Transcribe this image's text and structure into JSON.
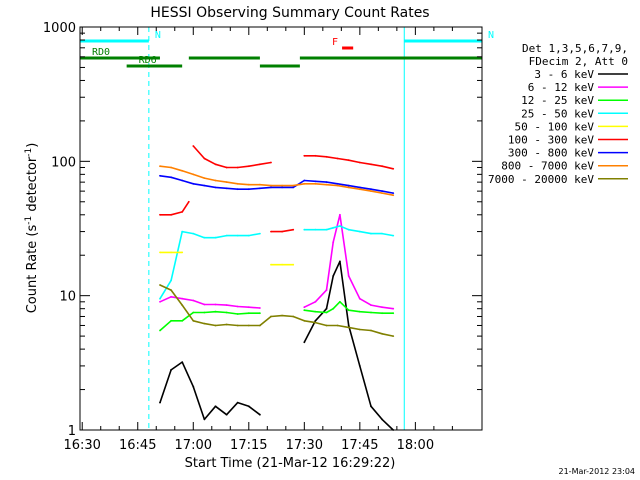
{
  "chart_data": {
    "type": "line",
    "title": "HESSI Observing Summary Count Rates",
    "xlabel": "Start Time (21-Mar-12 16:29:22)",
    "ylabel": "Count Rate (s",
    "ylabel_sup": "-1",
    "ylabel_tail": " detector",
    "ylabel_sup2": "-1",
    "ylabel_close": ")",
    "yscale": "log",
    "x_range_min": [
      16.49,
      18.3
    ],
    "ylim": [
      1,
      1000
    ],
    "x_ticks": [
      "16:30",
      "16:45",
      "17:00",
      "17:15",
      "17:30",
      "17:45",
      "18:00"
    ],
    "y_ticks": [
      "1",
      "10",
      "100",
      "1000"
    ],
    "grid": false,
    "legend_placement": "right",
    "legend_header": [
      "Det 1,3,5,6,7,9,",
      "FDecim 2, Att 0"
    ],
    "footer_timestamp": "21-Mar-2012 23:04",
    "series": [
      {
        "name": "3 - 6 keV",
        "color": "#000000",
        "segments": [
          {
            "x": [
              16.85,
              16.9,
              16.95,
              17.0,
              17.05,
              17.1,
              17.15,
              17.2,
              17.25,
              17.3
            ],
            "y": [
              1.6,
              2.8,
              3.2,
              2.1,
              1.2,
              1.5,
              1.3,
              1.6,
              1.5,
              1.3
            ]
          },
          {
            "x": [
              17.5,
              17.55,
              17.6,
              17.63,
              17.66,
              17.7,
              17.75,
              17.8,
              17.85,
              17.9
            ],
            "y": [
              4.5,
              6.5,
              8,
              14,
              18,
              6,
              3,
              1.5,
              1.2,
              1.0
            ]
          }
        ]
      },
      {
        "name": "6 - 12 keV",
        "color": "#ff00ff",
        "segments": [
          {
            "x": [
              16.85,
              16.9,
              16.95,
              17.0,
              17.05,
              17.1,
              17.15,
              17.2,
              17.25,
              17.3
            ],
            "y": [
              9,
              9.8,
              9.5,
              9.2,
              8.6,
              8.6,
              8.5,
              8.3,
              8.2,
              8.1
            ]
          },
          {
            "x": [
              17.5,
              17.55,
              17.6,
              17.63,
              17.66,
              17.7,
              17.75,
              17.8,
              17.85,
              17.9
            ],
            "y": [
              8.2,
              9,
              11,
              25,
              40,
              14,
              9.5,
              8.5,
              8.2,
              8.0
            ]
          }
        ]
      },
      {
        "name": "12 - 25 keV",
        "color": "#00ff00",
        "segments": [
          {
            "x": [
              16.85,
              16.9,
              16.95,
              17.0,
              17.05,
              17.1,
              17.15,
              17.2,
              17.25,
              17.3
            ],
            "y": [
              5.5,
              6.5,
              6.5,
              7.5,
              7.5,
              7.6,
              7.5,
              7.3,
              7.4,
              7.4
            ]
          },
          {
            "x": [
              17.5,
              17.55,
              17.6,
              17.63,
              17.66,
              17.7,
              17.75,
              17.8,
              17.85,
              17.9
            ],
            "y": [
              7.8,
              7.6,
              7.5,
              8,
              9,
              7.8,
              7.6,
              7.5,
              7.4,
              7.4
            ]
          }
        ]
      },
      {
        "name": "25 - 50 keV",
        "color": "#00ffff",
        "segments": [
          {
            "x": [
              16.85,
              16.9,
              16.95,
              17.0,
              17.05,
              17.1,
              17.15,
              17.2,
              17.25,
              17.3
            ],
            "y": [
              9.5,
              13,
              30,
              29,
              27,
              27,
              28,
              28,
              28,
              29
            ]
          },
          {
            "x": [
              17.5,
              17.55,
              17.6,
              17.63,
              17.66,
              17.7,
              17.75,
              17.8,
              17.85,
              17.9
            ],
            "y": [
              31,
              31,
              31,
              32,
              33,
              31,
              30,
              29,
              29,
              28
            ]
          }
        ]
      },
      {
        "name": "50 - 100 keV",
        "color": "#ffff00",
        "segments": [
          {
            "x": [
              16.85,
              16.9,
              16.95
            ],
            "y": [
              21,
              21,
              21
            ]
          },
          {
            "x": [
              17.35,
              17.4,
              17.45
            ],
            "y": [
              17,
              17,
              17
            ]
          }
        ]
      },
      {
        "name": "100 - 300 keV",
        "color": "#ff0000",
        "segments": [
          {
            "x": [
              16.85,
              16.9,
              16.95,
              16.98
            ],
            "y": [
              40,
              40,
              42,
              50
            ]
          },
          {
            "x": [
              17.0,
              17.05,
              17.1,
              17.15,
              17.2,
              17.25,
              17.3,
              17.35
            ],
            "y": [
              130,
              105,
              95,
              90,
              90,
              92,
              95,
              98
            ]
          },
          {
            "x": [
              17.35,
              17.4,
              17.45
            ],
            "y": [
              30,
              30,
              31
            ]
          },
          {
            "x": [
              17.5,
              17.55,
              17.6,
              17.65,
              17.7,
              17.75,
              17.8,
              17.85,
              17.9
            ],
            "y": [
              110,
              110,
              108,
              105,
              102,
              98,
              95,
              92,
              88
            ]
          }
        ]
      },
      {
        "name": "300 - 800 keV",
        "color": "#0000ff",
        "segments": [
          {
            "x": [
              16.85,
              16.9,
              16.95,
              17.0,
              17.05,
              17.1,
              17.15,
              17.2,
              17.25,
              17.3,
              17.35,
              17.4,
              17.45,
              17.5,
              17.55,
              17.6,
              17.65,
              17.7,
              17.75,
              17.8,
              17.85,
              17.9
            ],
            "y": [
              78,
              76,
              72,
              68,
              66,
              64,
              63,
              62,
              62,
              63,
              64,
              64,
              64,
              72,
              71,
              70,
              68,
              66,
              64,
              62,
              60,
              58
            ]
          }
        ]
      },
      {
        "name": "800 - 7000 keV",
        "color": "#ff8000",
        "segments": [
          {
            "x": [
              16.85,
              16.9,
              16.95,
              17.0,
              17.05,
              17.1,
              17.15,
              17.2,
              17.25,
              17.3,
              17.35,
              17.4,
              17.45,
              17.5,
              17.55,
              17.6,
              17.65,
              17.7,
              17.75,
              17.8,
              17.85,
              17.9
            ],
            "y": [
              92,
              90,
              85,
              80,
              75,
              72,
              70,
              68,
              67,
              67,
              66,
              66,
              66,
              68,
              68,
              67,
              66,
              64,
              62,
              60,
              58,
              56
            ]
          }
        ]
      },
      {
        "name": "7000 - 20000 keV",
        "color": "#808000",
        "segments": [
          {
            "x": [
              16.85,
              16.9,
              16.95,
              17.0,
              17.05,
              17.1,
              17.15,
              17.2,
              17.25,
              17.3,
              17.35,
              17.4,
              17.45,
              17.5,
              17.55,
              17.6,
              17.65,
              17.7,
              17.75,
              17.8,
              17.85,
              17.9
            ],
            "y": [
              12,
              11,
              8.5,
              6.5,
              6.2,
              6.0,
              6.1,
              6.0,
              6.0,
              6.0,
              7.0,
              7.1,
              7.0,
              6.5,
              6.3,
              6.0,
              6.0,
              5.8,
              5.6,
              5.5,
              5.2,
              5.0
            ]
          }
        ]
      }
    ],
    "annotations": [
      {
        "label": "N",
        "color": "#00ffff",
        "x_start": 16.49,
        "x_end": 16.8,
        "level": "top"
      },
      {
        "label": "N",
        "color": "#00ffff",
        "x_start": 17.95,
        "x_end": 18.3,
        "level": "top"
      },
      {
        "label": "F",
        "color": "#ff0000",
        "x_start": 17.67,
        "x_end": 17.72,
        "level": "upper"
      },
      {
        "label": "RD0",
        "color": "#008000",
        "x_start": 16.49,
        "x_end": 16.85,
        "level": "middle"
      },
      {
        "label": "",
        "color": "#008000",
        "x_start": 16.98,
        "x_end": 17.3,
        "level": "middle"
      },
      {
        "label": "",
        "color": "#008000",
        "x_start": 17.48,
        "x_end": 18.3,
        "level": "middle"
      },
      {
        "label": "RD6",
        "color": "#008000",
        "x_start": 16.7,
        "x_end": 16.95,
        "level": "lower"
      },
      {
        "label": "",
        "color": "#008000",
        "x_start": 17.3,
        "x_end": 17.48,
        "level": "lower"
      }
    ],
    "vertical_markers": [
      {
        "x": 16.49,
        "color": "#00ffff",
        "style": "solid"
      },
      {
        "x": 16.8,
        "color": "#00ffff",
        "style": "dashed"
      },
      {
        "x": 17.95,
        "color": "#00ffff",
        "style": "solid"
      },
      {
        "x": 18.3,
        "color": "#00ffff",
        "style": "dashed"
      }
    ]
  }
}
